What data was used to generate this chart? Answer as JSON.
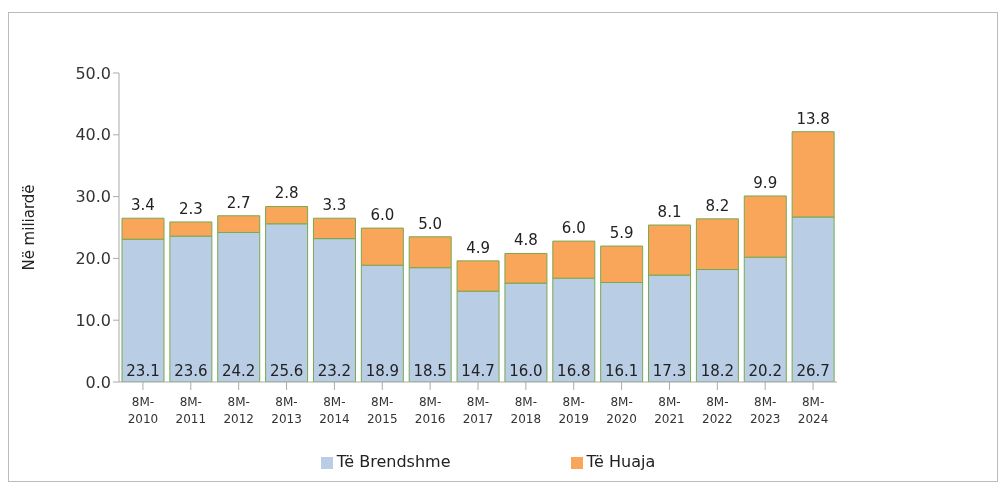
{
  "chart_data": {
    "type": "bar",
    "stacked": true,
    "ylabel": "Në miliardë",
    "categories": [
      "8M-2010",
      "8M-2011",
      "8M-2012",
      "8M-2013",
      "8M-2014",
      "8M-2015",
      "8M-2016",
      "8M-2017",
      "8M-2018",
      "8M-2019",
      "8M-2020",
      "8M-2021",
      "8M-2022",
      "8M-2023",
      "8M-2024"
    ],
    "series": [
      {
        "name": "Të Brendshme",
        "color": "#b9cde5",
        "values": [
          23.1,
          23.6,
          24.2,
          25.6,
          23.2,
          18.9,
          18.5,
          14.7,
          16.0,
          16.8,
          16.1,
          17.3,
          18.2,
          20.2,
          26.7
        ],
        "value_labels": [
          "23.1",
          "23.6",
          "24.2",
          "25.6",
          "23.2",
          "18.9",
          "18.5",
          "14.7",
          "16.0",
          "16.8",
          "16.1",
          "17.3",
          "18.2",
          "20.2",
          "26.7"
        ]
      },
      {
        "name": "Të Huaja",
        "color": "#f9a65a",
        "values": [
          3.4,
          2.3,
          2.7,
          2.8,
          3.3,
          6.0,
          5.0,
          4.9,
          4.8,
          6.0,
          5.9,
          8.1,
          8.2,
          9.9,
          13.8
        ],
        "value_labels": [
          "3.4",
          "2.3",
          "2.7",
          "2.8",
          "3.3",
          "6.0",
          "5.0",
          "4.9",
          "4.8",
          "6.0",
          "5.9",
          "8.1",
          "8.2",
          "9.9",
          "13.8"
        ]
      }
    ],
    "ylim": [
      0,
      50
    ],
    "yticks": [
      {
        "value": 0,
        "label": "0.0"
      },
      {
        "value": 10,
        "label": "10.0"
      },
      {
        "value": 20,
        "label": "20.0"
      },
      {
        "value": 30,
        "label": "30.0"
      },
      {
        "value": 40,
        "label": "40.0"
      },
      {
        "value": 50,
        "label": "50.0"
      }
    ],
    "grid": false,
    "legend": "bottom"
  }
}
